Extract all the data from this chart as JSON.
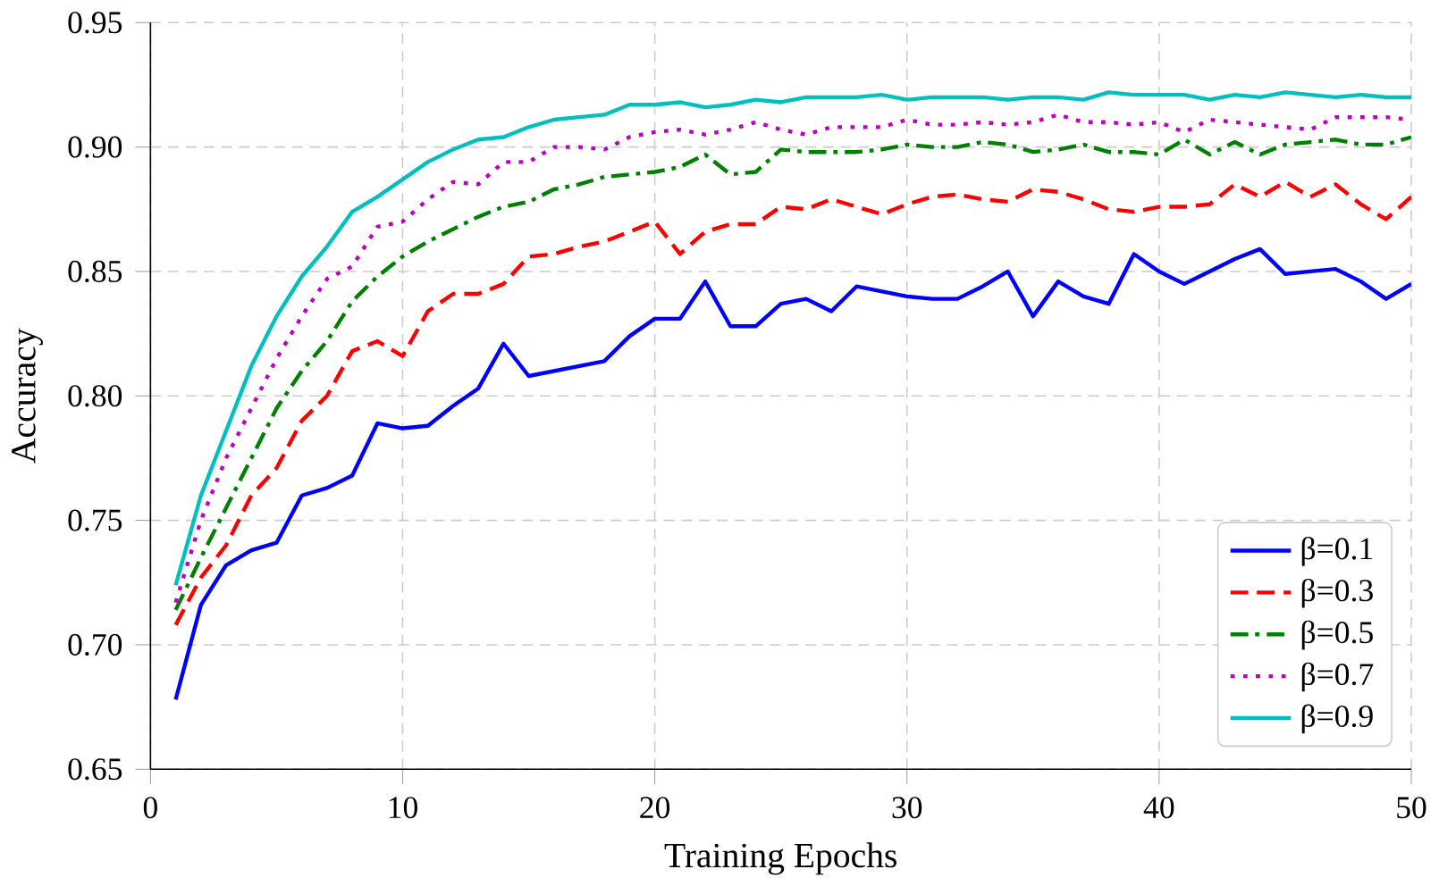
{
  "chart_data": {
    "type": "line",
    "xlabel": "Training Epochs",
    "ylabel": "Accuracy",
    "xlim": [
      0,
      50
    ],
    "ylim": [
      0.65,
      0.95
    ],
    "xticks": [
      0,
      10,
      20,
      30,
      40,
      50
    ],
    "yticks": [
      {
        "value": 0.65,
        "label": "0.65"
      },
      {
        "value": 0.7,
        "label": "0.70"
      },
      {
        "value": 0.75,
        "label": "0.75"
      },
      {
        "value": 0.8,
        "label": "0.80"
      },
      {
        "value": 0.85,
        "label": "0.85"
      },
      {
        "value": 0.9,
        "label": "0.90"
      },
      {
        "value": 0.95,
        "label": "0.95"
      }
    ],
    "grid": true,
    "legend": "bottom right",
    "marker": "none",
    "x": [
      1,
      2,
      3,
      4,
      5,
      6,
      7,
      8,
      9,
      10,
      11,
      12,
      13,
      14,
      15,
      16,
      17,
      18,
      19,
      20,
      21,
      22,
      23,
      24,
      25,
      26,
      27,
      28,
      29,
      30,
      31,
      32,
      33,
      34,
      35,
      36,
      37,
      38,
      39,
      40,
      41,
      42,
      43,
      44,
      45,
      46,
      47,
      48,
      49,
      50
    ],
    "series": [
      {
        "name": "β=0.1",
        "color": "#0000ff",
        "line_style": "solid",
        "values": [
          0.678,
          0.716,
          0.732,
          0.738,
          0.741,
          0.76,
          0.763,
          0.768,
          0.789,
          0.787,
          0.788,
          0.796,
          0.803,
          0.821,
          0.808,
          0.81,
          0.812,
          0.814,
          0.824,
          0.831,
          0.831,
          0.846,
          0.828,
          0.828,
          0.837,
          0.839,
          0.834,
          0.844,
          0.842,
          0.84,
          0.839,
          0.839,
          0.844,
          0.85,
          0.832,
          0.846,
          0.84,
          0.837,
          0.857,
          0.85,
          0.845,
          0.85,
          0.855,
          0.859,
          0.849,
          0.85,
          0.851,
          0.846,
          0.839,
          0.845
        ]
      },
      {
        "name": "β=0.3",
        "color": "#ff0000",
        "line_style": "dashed",
        "values": [
          0.708,
          0.727,
          0.74,
          0.76,
          0.771,
          0.79,
          0.8,
          0.818,
          0.822,
          0.816,
          0.834,
          0.841,
          0.841,
          0.845,
          0.856,
          0.857,
          0.86,
          0.862,
          0.866,
          0.87,
          0.857,
          0.866,
          0.869,
          0.869,
          0.876,
          0.875,
          0.879,
          0.876,
          0.873,
          0.877,
          0.88,
          0.881,
          0.879,
          0.878,
          0.883,
          0.882,
          0.879,
          0.875,
          0.874,
          0.876,
          0.876,
          0.877,
          0.885,
          0.88,
          0.886,
          0.88,
          0.885,
          0.877,
          0.871,
          0.88
        ]
      },
      {
        "name": "β=0.5",
        "color": "#008000",
        "line_style": "dashdot",
        "values": [
          0.714,
          0.735,
          0.755,
          0.775,
          0.795,
          0.81,
          0.822,
          0.838,
          0.848,
          0.856,
          0.862,
          0.867,
          0.872,
          0.876,
          0.878,
          0.883,
          0.885,
          0.888,
          0.889,
          0.89,
          0.892,
          0.897,
          0.889,
          0.89,
          0.899,
          0.898,
          0.898,
          0.898,
          0.899,
          0.901,
          0.9,
          0.9,
          0.902,
          0.901,
          0.898,
          0.899,
          0.901,
          0.898,
          0.898,
          0.897,
          0.903,
          0.897,
          0.902,
          0.897,
          0.901,
          0.902,
          0.903,
          0.901,
          0.901,
          0.904
        ]
      },
      {
        "name": "β=0.7",
        "color": "#c000c0",
        "line_style": "dotted",
        "values": [
          0.717,
          0.75,
          0.775,
          0.795,
          0.815,
          0.832,
          0.847,
          0.852,
          0.868,
          0.87,
          0.879,
          0.886,
          0.885,
          0.894,
          0.894,
          0.9,
          0.9,
          0.899,
          0.904,
          0.906,
          0.907,
          0.905,
          0.907,
          0.91,
          0.907,
          0.905,
          0.908,
          0.908,
          0.908,
          0.911,
          0.909,
          0.909,
          0.91,
          0.909,
          0.91,
          0.913,
          0.91,
          0.91,
          0.909,
          0.91,
          0.906,
          0.911,
          0.91,
          0.909,
          0.908,
          0.907,
          0.912,
          0.912,
          0.912,
          0.911
        ]
      },
      {
        "name": "β=0.9",
        "color": "#00bfbf",
        "line_style": "solid",
        "values": [
          0.724,
          0.76,
          0.786,
          0.812,
          0.832,
          0.848,
          0.86,
          0.874,
          0.88,
          0.887,
          0.894,
          0.899,
          0.903,
          0.904,
          0.908,
          0.911,
          0.912,
          0.913,
          0.917,
          0.917,
          0.918,
          0.916,
          0.917,
          0.919,
          0.918,
          0.92,
          0.92,
          0.92,
          0.921,
          0.919,
          0.92,
          0.92,
          0.92,
          0.919,
          0.92,
          0.92,
          0.919,
          0.922,
          0.921,
          0.921,
          0.921,
          0.919,
          0.921,
          0.92,
          0.922,
          0.921,
          0.92,
          0.921,
          0.92,
          0.92
        ]
      }
    ]
  }
}
